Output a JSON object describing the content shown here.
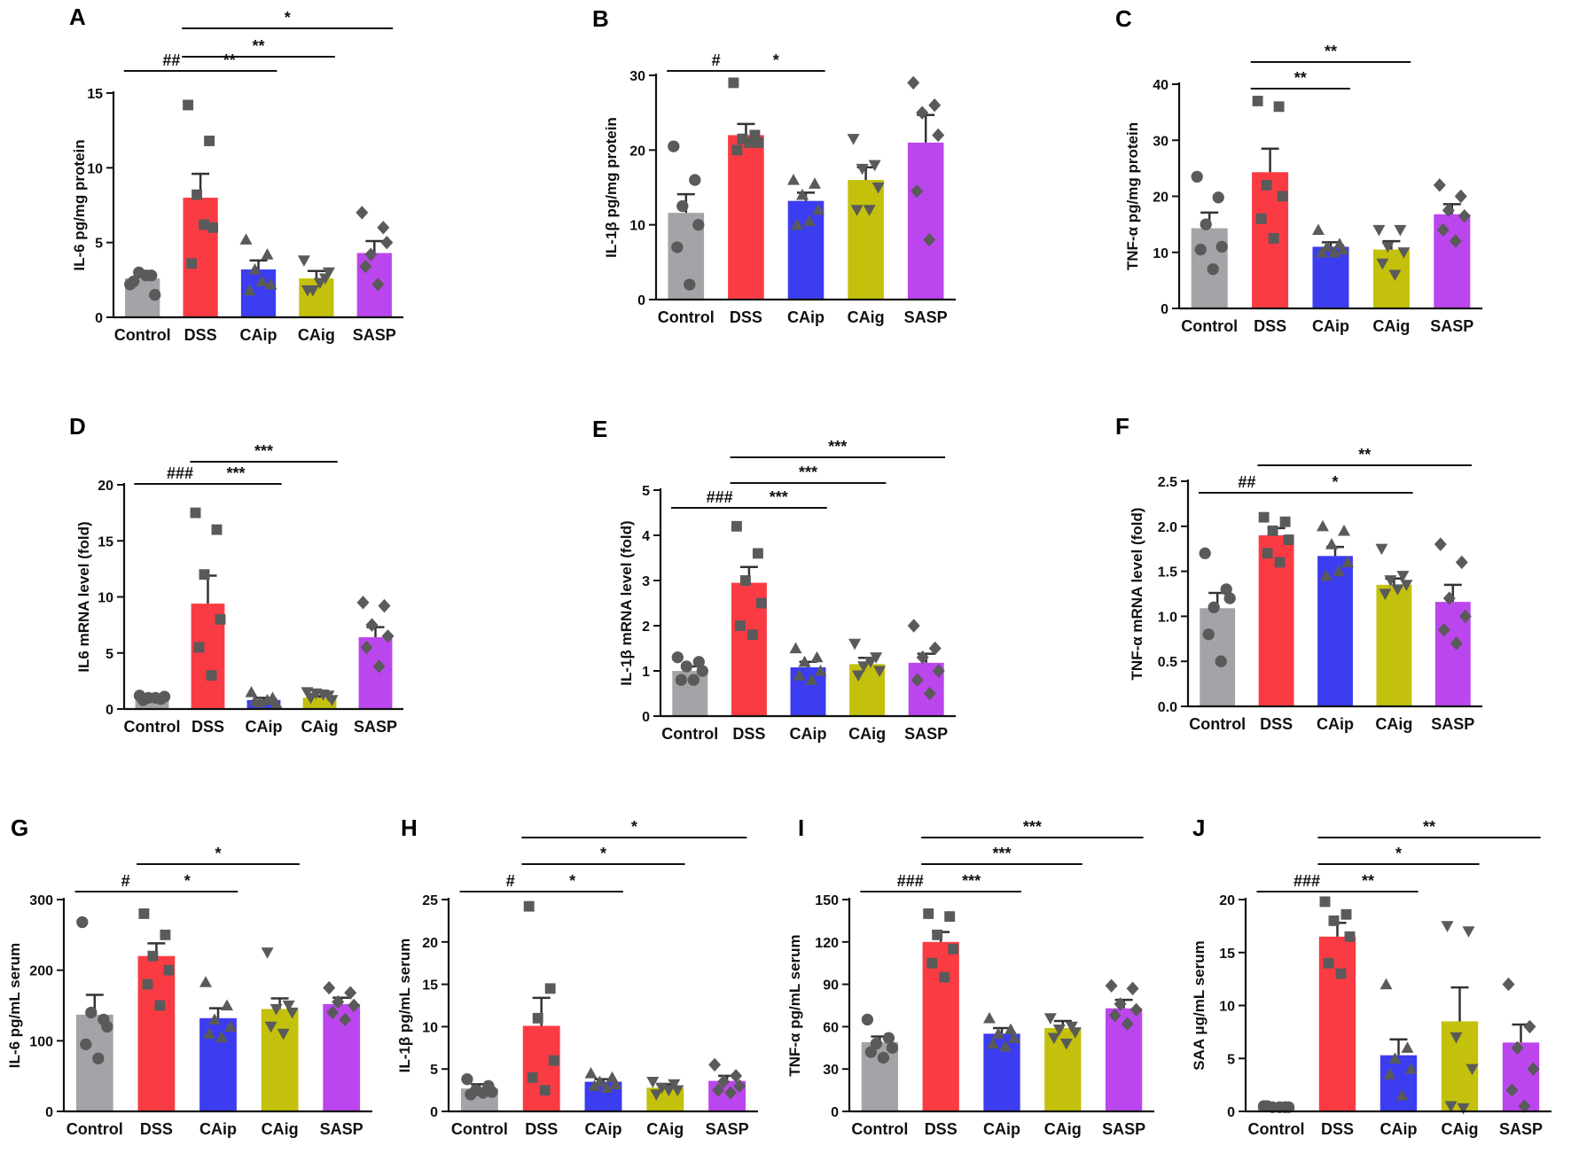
{
  "figure": {
    "groups": [
      "Control",
      "DSS",
      "CAip",
      "CAig",
      "SASP"
    ]
  },
  "colors": {
    "Control": "#a3a3a8",
    "DSS": "#fb3b43",
    "CAip": "#3c3cf0",
    "CAig": "#c3c10b",
    "SASP": "#bb46ee",
    "point": "#5a5a5a",
    "axis": "#111111"
  },
  "markers": {
    "Control": "circle",
    "DSS": "square",
    "CAip": "triangle-up",
    "CAig": "triangle-down",
    "SASP": "diamond"
  },
  "chart_data": [
    {
      "id": "A",
      "letter": "A",
      "type": "bar",
      "ylabel": "IL-6 pg/mg protein",
      "categories": [
        "Control",
        "DSS",
        "CAip",
        "CAig",
        "SASP"
      ],
      "ylim": [
        0,
        15
      ],
      "yticks": [
        "0",
        "5",
        "10",
        "15"
      ],
      "values": [
        2.6,
        8.0,
        3.2,
        2.6,
        4.3
      ],
      "errors": [
        0.5,
        1.6,
        0.6,
        0.5,
        0.8
      ],
      "points": [
        [
          2.2,
          2.8,
          3.0,
          1.5,
          2.4,
          2.8
        ],
        [
          14.2,
          11.8,
          8.2,
          6.0,
          3.6,
          6.2
        ],
        [
          5.2,
          4.2,
          3.2,
          2.2,
          1.8,
          2.4
        ],
        [
          3.8,
          2.6,
          1.8,
          3.0,
          1.8,
          2.3
        ],
        [
          7.0,
          6.0,
          4.2,
          5.0,
          3.4,
          2.2
        ]
      ],
      "significance": [
        {
          "from": 0,
          "to": 1,
          "label": "##"
        },
        {
          "from": 1,
          "to": 2,
          "label": "**"
        },
        {
          "from": 1,
          "to": 3,
          "label": "**"
        },
        {
          "from": 1,
          "to": 4,
          "label": "*"
        }
      ]
    },
    {
      "id": "B",
      "letter": "B",
      "type": "bar",
      "ylabel": "IL-1β pg/mg protein",
      "categories": [
        "Control",
        "DSS",
        "CAip",
        "CAig",
        "SASP"
      ],
      "ylim": [
        0,
        30
      ],
      "yticks": [
        "0",
        "10",
        "20",
        "30"
      ],
      "values": [
        11.6,
        22.0,
        13.2,
        16.0,
        21.0
      ],
      "errors": [
        2.5,
        1.5,
        1.1,
        1.7,
        3.7
      ],
      "points": [
        [
          20.5,
          16.0,
          12.5,
          10.0,
          7.0,
          2.0
        ],
        [
          29.0,
          22.0,
          21.5,
          21.0,
          20.0,
          21.0
        ],
        [
          16.0,
          15.5,
          14.0,
          12.0,
          10.0,
          10.5
        ],
        [
          21.5,
          18.0,
          17.5,
          15.0,
          12.0,
          12.0
        ],
        [
          29.0,
          26.0,
          25.0,
          22.0,
          14.5,
          8.0
        ]
      ],
      "significance": [
        {
          "from": 0,
          "to": 1,
          "label": "#"
        },
        {
          "from": 1,
          "to": 2,
          "label": "*"
        }
      ]
    },
    {
      "id": "C",
      "letter": "C",
      "type": "bar",
      "ylabel": "TNF-α pg/mg protein",
      "categories": [
        "Control",
        "DSS",
        "CAip",
        "CAig",
        "SASP"
      ],
      "ylim": [
        0,
        40
      ],
      "yticks": [
        "0",
        "10",
        "20",
        "30",
        "40"
      ],
      "values": [
        14.3,
        24.3,
        11.0,
        10.5,
        16.8
      ],
      "errors": [
        2.8,
        4.2,
        0.8,
        1.5,
        1.8
      ],
      "points": [
        [
          23.5,
          19.8,
          15.0,
          11.0,
          10.5,
          7.0
        ],
        [
          37.0,
          36.0,
          22.0,
          20.0,
          16.0,
          12.5
        ],
        [
          14.0,
          11.5,
          11.0,
          10.5,
          10.0,
          10.0
        ],
        [
          14.0,
          14.0,
          11.0,
          10.0,
          8.0,
          6.0
        ],
        [
          22.0,
          20.0,
          17.5,
          16.5,
          14.0,
          12.0
        ]
      ],
      "significance": [
        {
          "from": 1,
          "to": 2,
          "label": "**"
        },
        {
          "from": 1,
          "to": 3,
          "label": "**"
        }
      ]
    },
    {
      "id": "D",
      "letter": "D",
      "type": "bar",
      "ylabel": "IL6 mRNA level (fold)",
      "categories": [
        "Control",
        "DSS",
        "CAip",
        "CAig",
        "SASP"
      ],
      "ylim": [
        0,
        20
      ],
      "yticks": [
        "0",
        "5",
        "10",
        "15",
        "20"
      ],
      "values": [
        1.0,
        9.4,
        0.8,
        1.0,
        6.4
      ],
      "errors": [
        0.15,
        2.5,
        0.2,
        0.15,
        0.9
      ],
      "points": [
        [
          1.2,
          0.9,
          1.0,
          1.1,
          0.8,
          1.0
        ],
        [
          17.5,
          16.0,
          12.0,
          8.0,
          5.5,
          3.0
        ],
        [
          1.5,
          1.0,
          0.6,
          0.5,
          0.7,
          0.8
        ],
        [
          1.5,
          1.2,
          1.4,
          0.8,
          1.0,
          1.3
        ],
        [
          9.5,
          9.2,
          7.5,
          6.5,
          5.5,
          3.8
        ]
      ],
      "significance": [
        {
          "from": 0,
          "to": 1,
          "label": "###"
        },
        {
          "from": 1,
          "to": 2,
          "label": "***"
        },
        {
          "from": 1,
          "to": 3,
          "label": "***"
        }
      ]
    },
    {
      "id": "E",
      "letter": "E",
      "type": "bar",
      "ylabel": "IL-1β mRNA level (fold)",
      "categories": [
        "Control",
        "DSS",
        "CAip",
        "CAig",
        "SASP"
      ],
      "ylim": [
        0,
        5
      ],
      "yticks": [
        "0",
        "1",
        "2",
        "3",
        "4",
        "5"
      ],
      "values": [
        1.0,
        2.95,
        1.08,
        1.15,
        1.18
      ],
      "errors": [
        0.1,
        0.35,
        0.12,
        0.14,
        0.2
      ],
      "points": [
        [
          1.3,
          1.2,
          1.1,
          1.0,
          0.8,
          0.8
        ],
        [
          4.2,
          3.6,
          3.0,
          2.5,
          2.0,
          1.8
        ],
        [
          1.5,
          1.3,
          1.2,
          1.0,
          0.9,
          0.8
        ],
        [
          1.6,
          1.3,
          1.1,
          1.0,
          0.9,
          1.2
        ],
        [
          2.0,
          1.5,
          1.3,
          1.0,
          0.8,
          0.5
        ]
      ],
      "significance": [
        {
          "from": 0,
          "to": 1,
          "label": "###"
        },
        {
          "from": 1,
          "to": 2,
          "label": "***"
        },
        {
          "from": 1,
          "to": 3,
          "label": "***"
        },
        {
          "from": 1,
          "to": 4,
          "label": "***"
        }
      ]
    },
    {
      "id": "F",
      "letter": "F",
      "type": "bar",
      "ylabel": "TNF-α mRNA level (fold)",
      "categories": [
        "Control",
        "DSS",
        "CAip",
        "CAig",
        "SASP"
      ],
      "ylim": [
        0,
        2.5
      ],
      "yticks": [
        "0.0",
        "0.5",
        "1.0",
        "1.5",
        "2.0",
        "2.5"
      ],
      "values": [
        1.09,
        1.9,
        1.67,
        1.35,
        1.16
      ],
      "errors": [
        0.17,
        0.08,
        0.1,
        0.07,
        0.19
      ],
      "points": [
        [
          1.7,
          1.3,
          1.1,
          1.2,
          0.8,
          0.5
        ],
        [
          2.1,
          2.05,
          1.95,
          1.85,
          1.7,
          1.6
        ],
        [
          2.0,
          1.95,
          1.8,
          1.6,
          1.45,
          1.5
        ],
        [
          1.75,
          1.45,
          1.4,
          1.35,
          1.25,
          1.3
        ],
        [
          1.8,
          1.6,
          1.2,
          1.0,
          0.85,
          0.7
        ]
      ],
      "significance": [
        {
          "from": 0,
          "to": 1,
          "label": "##"
        },
        {
          "from": 1,
          "to": 3,
          "label": "*"
        },
        {
          "from": 1,
          "to": 4,
          "label": "**"
        }
      ]
    },
    {
      "id": "G",
      "letter": "G",
      "type": "bar",
      "ylabel": "IL-6 pg/mL serum",
      "categories": [
        "Control",
        "DSS",
        "CAip",
        "CAig",
        "SASP"
      ],
      "ylim": [
        0,
        300
      ],
      "yticks": [
        "0",
        "100",
        "200",
        "300"
      ],
      "values": [
        137,
        220,
        132,
        145,
        152
      ],
      "errors": [
        28,
        18,
        14,
        15,
        9
      ],
      "points": [
        [
          268,
          130,
          140,
          120,
          95,
          75
        ],
        [
          280,
          250,
          220,
          200,
          180,
          150
        ],
        [
          183,
          150,
          130,
          120,
          110,
          105
        ],
        [
          225,
          150,
          145,
          140,
          120,
          110
        ],
        [
          175,
          168,
          155,
          150,
          140,
          130
        ]
      ],
      "significance": [
        {
          "from": 0,
          "to": 1,
          "label": "#"
        },
        {
          "from": 1,
          "to": 2,
          "label": "*"
        },
        {
          "from": 1,
          "to": 3,
          "label": "*"
        }
      ]
    },
    {
      "id": "H",
      "letter": "H",
      "type": "bar",
      "ylabel": "IL-1β pg/mL serum",
      "categories": [
        "Control",
        "DSS",
        "CAip",
        "CAig",
        "SASP"
      ],
      "ylim": [
        0,
        25
      ],
      "yticks": [
        "0",
        "5",
        "10",
        "15",
        "20",
        "25"
      ],
      "values": [
        2.7,
        10.1,
        3.5,
        2.8,
        3.6
      ],
      "errors": [
        0.5,
        3.3,
        0.3,
        0.4,
        0.6
      ],
      "points": [
        [
          3.8,
          3.0,
          2.5,
          2.3,
          2.0,
          2.2
        ],
        [
          24.2,
          14.5,
          11.0,
          6.0,
          4.0,
          2.5
        ],
        [
          4.5,
          4.0,
          3.5,
          3.2,
          3.0,
          2.8
        ],
        [
          3.5,
          3.2,
          2.8,
          2.5,
          2.0,
          2.5
        ],
        [
          5.5,
          4.2,
          3.5,
          3.0,
          2.5,
          2.2
        ]
      ],
      "significance": [
        {
          "from": 0,
          "to": 1,
          "label": "#"
        },
        {
          "from": 1,
          "to": 2,
          "label": "*"
        },
        {
          "from": 1,
          "to": 3,
          "label": "*"
        },
        {
          "from": 1,
          "to": 4,
          "label": "*"
        }
      ]
    },
    {
      "id": "I",
      "letter": "I",
      "type": "bar",
      "ylabel": "TNF-α pg/mL serum",
      "categories": [
        "Control",
        "DSS",
        "CAip",
        "CAig",
        "SASP"
      ],
      "ylim": [
        0,
        150
      ],
      "yticks": [
        "0",
        "30",
        "60",
        "90",
        "120",
        "150"
      ],
      "values": [
        49,
        120,
        55,
        59,
        73
      ],
      "errors": [
        4,
        7,
        4,
        5,
        6
      ],
      "points": [
        [
          65,
          52,
          48,
          45,
          42,
          38
        ],
        [
          140,
          138,
          125,
          115,
          105,
          95
        ],
        [
          66,
          58,
          55,
          52,
          48,
          46
        ],
        [
          66,
          60,
          58,
          56,
          52,
          48
        ],
        [
          89,
          87,
          76,
          72,
          68,
          62
        ]
      ],
      "significance": [
        {
          "from": 0,
          "to": 1,
          "label": "###"
        },
        {
          "from": 1,
          "to": 2,
          "label": "***"
        },
        {
          "from": 1,
          "to": 3,
          "label": "***"
        },
        {
          "from": 1,
          "to": 4,
          "label": "***"
        }
      ]
    },
    {
      "id": "J",
      "letter": "J",
      "type": "bar",
      "ylabel": "SAA μg/mL serum",
      "categories": [
        "Control",
        "DSS",
        "CAip",
        "CAig",
        "SASP"
      ],
      "ylim": [
        0,
        20
      ],
      "yticks": [
        "0",
        "5",
        "10",
        "15",
        "20"
      ],
      "values": [
        0.4,
        16.5,
        5.3,
        8.5,
        6.5
      ],
      "errors": [
        0.05,
        1.3,
        1.5,
        3.2,
        1.7
      ],
      "points": [
        [
          0.5,
          0.4,
          0.4,
          0.4,
          0.5,
          0.4
        ],
        [
          19.8,
          18.6,
          18.0,
          16.5,
          14.0,
          13.0
        ],
        [
          12.0,
          6.0,
          5.0,
          4.0,
          3.5,
          1.5
        ],
        [
          17.5,
          17.0,
          7.0,
          4.0,
          0.5,
          0.3
        ],
        [
          12.0,
          8.0,
          6.0,
          4.0,
          2.0,
          0.5
        ]
      ],
      "significance": [
        {
          "from": 0,
          "to": 1,
          "label": "###"
        },
        {
          "from": 1,
          "to": 2,
          "label": "**"
        },
        {
          "from": 1,
          "to": 3,
          "label": "*"
        },
        {
          "from": 1,
          "to": 4,
          "label": "**"
        }
      ]
    }
  ]
}
